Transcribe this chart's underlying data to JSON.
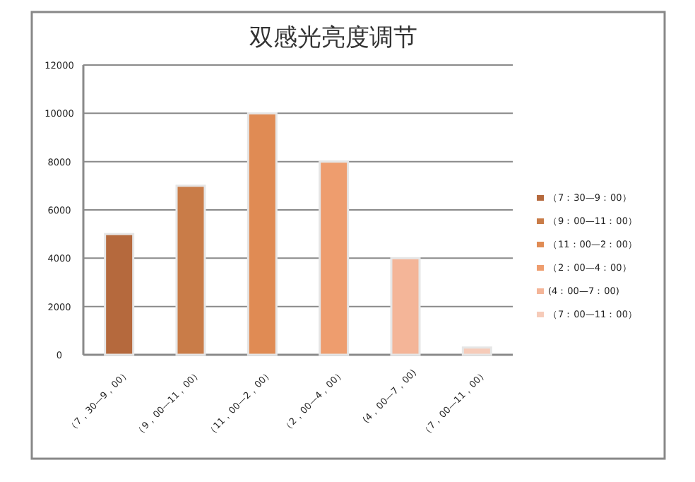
{
  "chart_data": {
    "type": "bar",
    "title": "双感光亮度调节",
    "categories": [
      "（7，30—9，00）",
      "（9，00—11，00）",
      "（11，00—2，00）",
      "（2，00—4，00）",
      "(4，00—7，00)",
      "（7，00—11，00）"
    ],
    "series": [
      {
        "name": "（7：30—9：00）",
        "color": "#b5693d",
        "values": [
          5000,
          null,
          null,
          null,
          null,
          null
        ]
      },
      {
        "name": "（9：00—11：00）",
        "color": "#c97c48",
        "values": [
          null,
          7000,
          null,
          null,
          null,
          null
        ]
      },
      {
        "name": "（11：00—2：00）",
        "color": "#e08b54",
        "values": [
          null,
          null,
          10000,
          null,
          null,
          null
        ]
      },
      {
        "name": "（2：00—4：00）",
        "color": "#ee9d6e",
        "values": [
          null,
          null,
          null,
          8000,
          null,
          null
        ]
      },
      {
        "name": "(4：00—7：00)",
        "color": "#f4b598",
        "values": [
          null,
          null,
          null,
          null,
          4000,
          null
        ]
      },
      {
        "name": "（7：00—11：00）",
        "color": "#f6cbb9",
        "values": [
          null,
          null,
          null,
          null,
          null,
          300
        ]
      }
    ],
    "ylim": [
      0,
      12000
    ],
    "yticks": [
      0,
      2000,
      4000,
      6000,
      8000,
      10000,
      12000
    ],
    "grid": "y",
    "legend": "right"
  }
}
